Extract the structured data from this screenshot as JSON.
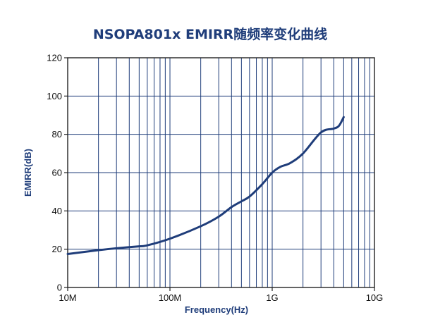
{
  "chart_data": {
    "type": "line",
    "title": "NSOPA801x EMIRR随频率变化曲线",
    "xlabel": "Frequency(Hz)",
    "ylabel": "EMIRR(dB)",
    "x_scale": "log",
    "xlim": [
      10000000,
      10000000000
    ],
    "ylim": [
      0,
      120
    ],
    "x_ticks": [
      {
        "value": 10000000,
        "label": "10M"
      },
      {
        "value": 100000000,
        "label": "100M"
      },
      {
        "value": 1000000000,
        "label": "1G"
      },
      {
        "value": 10000000000,
        "label": "10G"
      }
    ],
    "y_ticks": [
      {
        "value": 0,
        "label": "0"
      },
      {
        "value": 20,
        "label": "20"
      },
      {
        "value": 40,
        "label": "40"
      },
      {
        "value": 60,
        "label": "60"
      },
      {
        "value": 80,
        "label": "80"
      },
      {
        "value": 100,
        "label": "100"
      },
      {
        "value": 120,
        "label": "120"
      }
    ],
    "grid": true,
    "line_color": "#1f3d7a",
    "series": [
      {
        "x": [
          10000000,
          20000000,
          30000000,
          50000000,
          60000000,
          100000000,
          200000000,
          300000000,
          400000000,
          500000000,
          600000000,
          800000000,
          1000000000,
          1200000000,
          1500000000,
          2000000000,
          3000000000,
          4000000000,
          4500000000,
          5000000000
        ],
        "y": [
          17.5,
          19.5,
          20.5,
          21.5,
          22,
          25.5,
          32,
          37,
          42,
          45,
          47.5,
          54,
          60,
          63,
          65,
          70,
          81,
          83,
          84.5,
          89
        ]
      }
    ]
  }
}
